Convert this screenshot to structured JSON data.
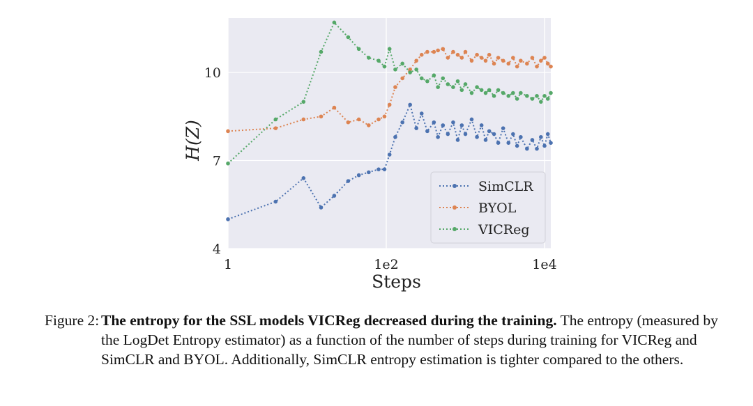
{
  "chart_data": {
    "type": "line",
    "xscale": "log",
    "xlim": [
      1,
      12000
    ],
    "ylim": [
      4,
      11.85
    ],
    "xlabel": "Steps",
    "ylabel": "H(Z)",
    "x_ticks": [
      1,
      100,
      10000
    ],
    "x_tick_labels": [
      "1",
      "1e2",
      "1e4"
    ],
    "y_ticks": [
      4,
      7,
      10
    ],
    "y_tick_labels": [
      "4",
      "7",
      "10"
    ],
    "grid": true,
    "legend_position": "lower-right",
    "series": [
      {
        "name": "SimCLR",
        "color": "#4c72b0",
        "x": [
          1,
          4,
          9,
          15,
          22,
          33,
          45,
          60,
          80,
          95,
          110,
          130,
          160,
          200,
          240,
          280,
          330,
          400,
          450,
          520,
          600,
          700,
          800,
          900,
          1000,
          1200,
          1400,
          1600,
          1800,
          2000,
          2300,
          2600,
          3000,
          3500,
          4000,
          4500,
          5000,
          6000,
          7000,
          8000,
          9000,
          10000,
          11000,
          12000
        ],
        "values": [
          5.0,
          5.6,
          6.4,
          5.4,
          5.8,
          6.3,
          6.5,
          6.6,
          6.7,
          6.7,
          7.2,
          7.8,
          8.3,
          8.9,
          8.1,
          8.6,
          8.0,
          8.3,
          7.8,
          8.2,
          7.9,
          8.3,
          7.7,
          8.2,
          7.9,
          8.4,
          7.8,
          8.2,
          7.7,
          8.0,
          7.9,
          7.6,
          8.1,
          7.6,
          7.9,
          7.5,
          7.8,
          7.4,
          7.7,
          7.4,
          7.8,
          7.5,
          7.9,
          7.6
        ]
      },
      {
        "name": "BYOL",
        "color": "#dd8452",
        "x": [
          1,
          4,
          9,
          15,
          22,
          33,
          45,
          60,
          80,
          95,
          110,
          130,
          160,
          200,
          240,
          280,
          330,
          400,
          450,
          520,
          600,
          700,
          800,
          900,
          1000,
          1200,
          1400,
          1600,
          1800,
          2000,
          2300,
          2600,
          3000,
          3500,
          4000,
          4500,
          5000,
          6000,
          7000,
          8000,
          9000,
          10000,
          11000,
          12000
        ],
        "values": [
          8.0,
          8.1,
          8.4,
          8.5,
          8.8,
          8.3,
          8.4,
          8.2,
          8.4,
          8.5,
          8.9,
          9.5,
          9.8,
          10.1,
          10.4,
          10.6,
          10.7,
          10.7,
          10.75,
          10.8,
          10.5,
          10.7,
          10.6,
          10.5,
          10.7,
          10.4,
          10.6,
          10.5,
          10.4,
          10.6,
          10.3,
          10.5,
          10.4,
          10.3,
          10.5,
          10.2,
          10.4,
          10.3,
          10.5,
          10.2,
          10.4,
          10.5,
          10.3,
          10.2
        ]
      },
      {
        "name": "VICReg",
        "color": "#55a868",
        "x": [
          1,
          4,
          9,
          15,
          22,
          33,
          45,
          60,
          80,
          95,
          110,
          130,
          160,
          200,
          240,
          280,
          330,
          400,
          450,
          520,
          600,
          700,
          800,
          900,
          1000,
          1200,
          1400,
          1600,
          1800,
          2000,
          2300,
          2600,
          3000,
          3500,
          4000,
          4500,
          5000,
          6000,
          7000,
          8000,
          9000,
          10000,
          11000,
          12000
        ],
        "values": [
          6.9,
          8.4,
          9.0,
          10.7,
          11.7,
          11.2,
          10.8,
          10.5,
          10.4,
          10.2,
          10.8,
          10.1,
          10.3,
          10.0,
          10.1,
          9.8,
          9.7,
          9.9,
          9.5,
          9.8,
          9.6,
          9.5,
          9.7,
          9.4,
          9.6,
          9.3,
          9.5,
          9.4,
          9.3,
          9.4,
          9.2,
          9.4,
          9.3,
          9.2,
          9.3,
          9.1,
          9.3,
          9.2,
          9.1,
          9.2,
          9.0,
          9.2,
          9.1,
          9.3
        ]
      }
    ]
  },
  "caption": {
    "label": "Figure 2:",
    "title": "The entropy for the SSL models VICReg decreased during the training.",
    "body": "The entropy (measured by the LogDet Entropy estimator) as a function of the number of steps during training for VICReg and SimCLR and BYOL. Additionally, SimCLR entropy estimation is tighter compared to the others."
  }
}
